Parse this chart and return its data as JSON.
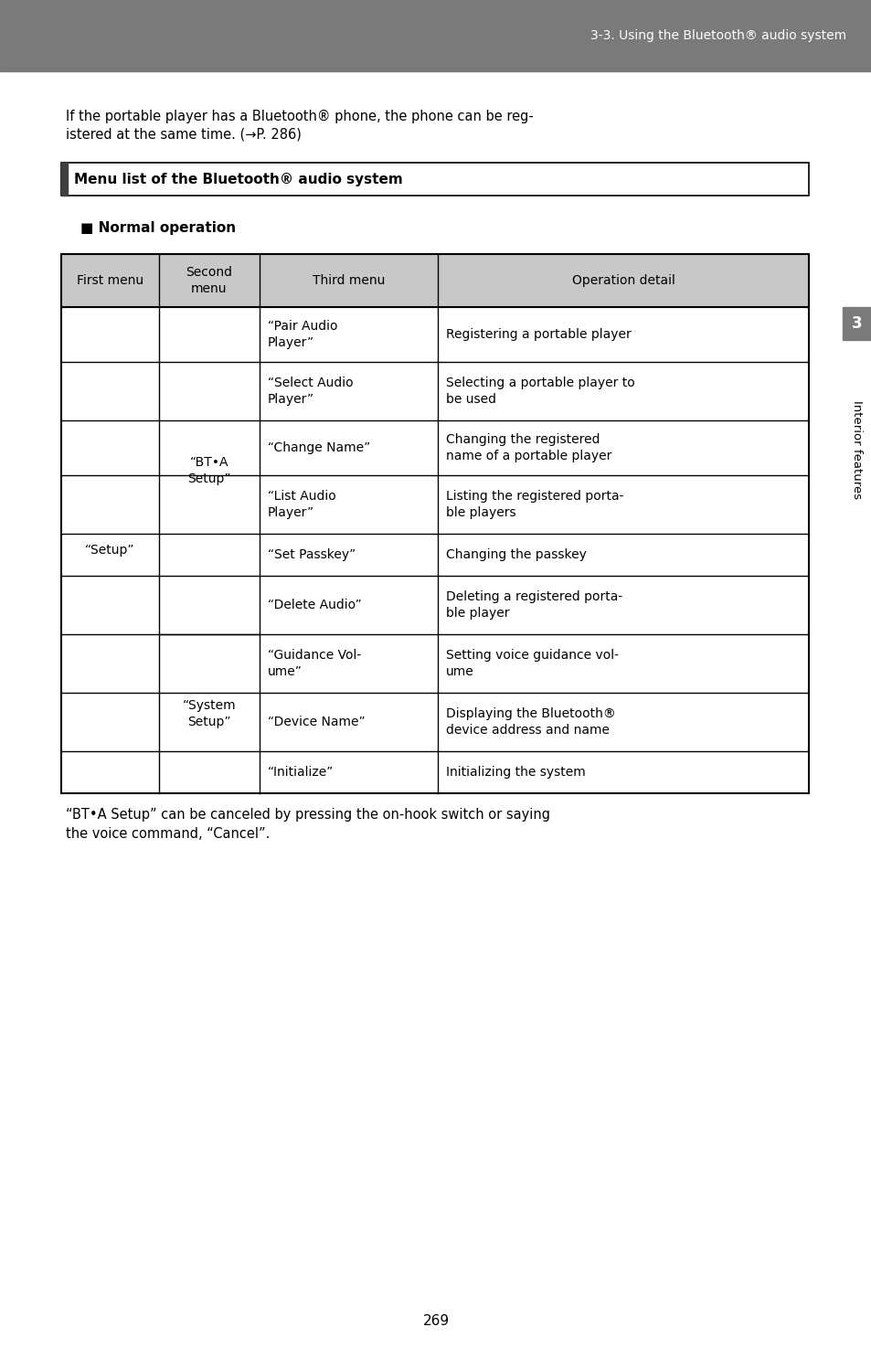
{
  "page_bg": "#ffffff",
  "header_bg": "#7a7a7a",
  "header_text_color": "#ffffff",
  "header_text": "3-3. Using the Bluetooth® audio system",
  "body_text_1a": "If the portable player has a Bluetooth® phone, the phone can be reg-",
  "body_text_1b": "istered at the same time. (→P. 286)",
  "section_title": "Menu list of the Bluetooth® audio system",
  "subsection_title": "■ Normal operation",
  "table_header_bg": "#c8c8c8",
  "table_col_headers": [
    "First menu",
    "Second\nmenu",
    "Third menu",
    "Operation detail"
  ],
  "table_rows": [
    {
      "“Pair Audio\nPlayer”": "Registering a portable player"
    },
    {
      "“Select Audio\nPlayer”": "Selecting a portable player to\nbe used"
    },
    {
      "“Change Name”": "Changing the registered\nname of a portable player"
    },
    {
      "“List Audio\nPlayer”": "Listing the registered porta-\nble players"
    },
    {
      "“Set Passkey”": "Changing the passkey"
    },
    {
      "“Delete Audio”": "Deleting a registered porta-\nble player"
    },
    {
      "“Guidance Vol-\nume”": "Setting voice guidance vol-\nume"
    },
    {
      "“Device Name”": "Displaying the Bluetooth®\ndevice address and name"
    },
    {
      "“Initialize”": "Initializing the system"
    }
  ],
  "col2_texts": [
    "“Pair Audio\nPlayer”",
    "“Select Audio\nPlayer”",
    "“Change Name”",
    "“List Audio\nPlayer”",
    "“Set Passkey”",
    "“Delete Audio”",
    "“Guidance Vol-\nume”",
    "“Device Name”",
    "“Initialize”"
  ],
  "col3_texts": [
    "Registering a portable player",
    "Selecting a portable player to\nbe used",
    "Changing the registered\nname of a portable player",
    "Listing the registered porta-\nble players",
    "Changing the passkey",
    "Deleting a registered porta-\nble player",
    "Setting voice guidance vol-\nume",
    "Displaying the Bluetooth®\ndevice address and name",
    "Initializing the system"
  ],
  "footer_text": "“BT•A Setup” can be canceled by pressing the on-hook switch or saying\nthe voice command, “Cancel”.",
  "page_number": "269",
  "side_tab_text": "Interior features",
  "side_tab_bg": "#7a7a7a",
  "side_tab_text_color": "#ffffff",
  "side_number_text": "3",
  "side_number_bg": "#7a7a7a"
}
